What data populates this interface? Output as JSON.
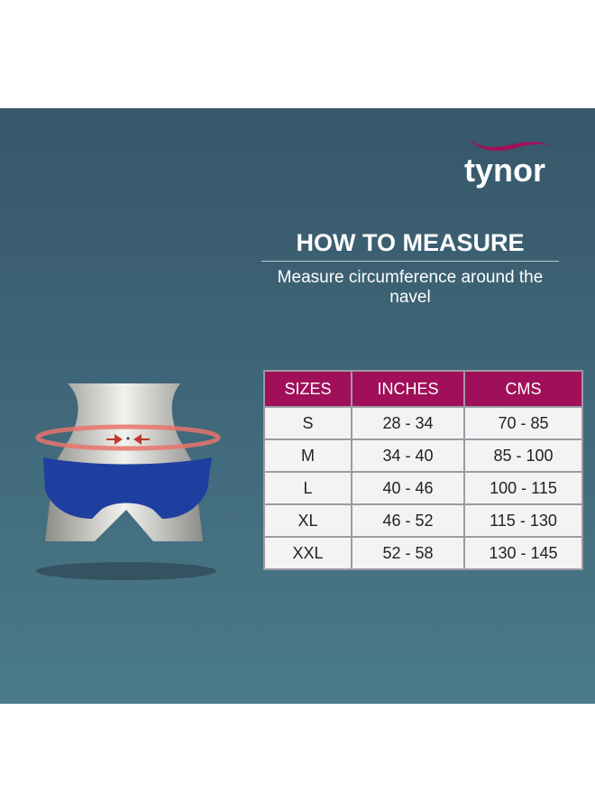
{
  "brand": {
    "name": "tynor",
    "accent": "#a0105a"
  },
  "heading": "HOW TO MEASURE",
  "instruction": "Measure circumference around the navel",
  "size_table": {
    "headers": [
      "SIZES",
      "INCHES",
      "CMS"
    ],
    "rows": [
      [
        "S",
        "28 - 34",
        "70 - 85"
      ],
      [
        "M",
        "34 - 40",
        "85 - 100"
      ],
      [
        "L",
        "40 - 46",
        "100 - 115"
      ],
      [
        "XL",
        "46 - 52",
        "115 - 130"
      ],
      [
        "XXL",
        "52 - 58",
        "130 - 145"
      ]
    ]
  },
  "colors": {
    "background": "#3f6678",
    "header": "#a0105a",
    "cell": "#f3f3f3",
    "garment": "#1f3fa0",
    "measure_band": "#e8746c"
  }
}
